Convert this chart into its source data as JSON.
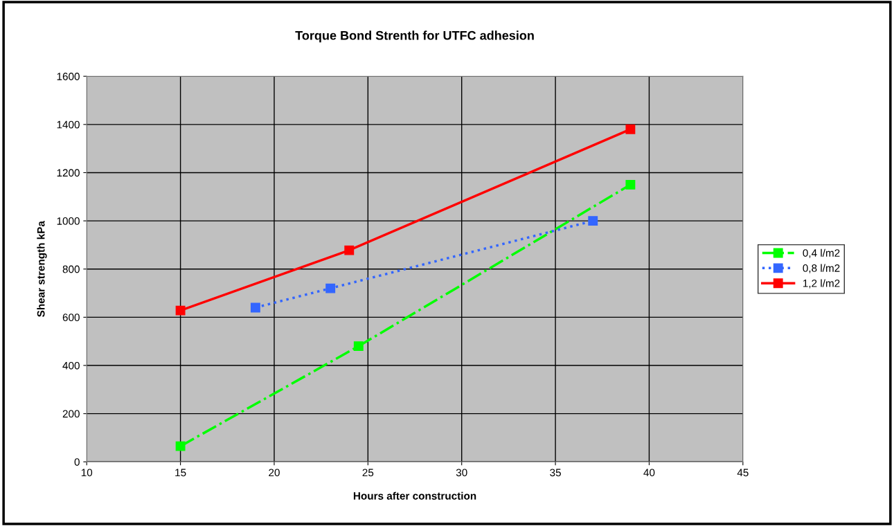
{
  "chart_data": {
    "type": "line",
    "title": "Torque Bond Strenth for UTFC adhesion",
    "xlabel": "Hours after construction",
    "ylabel": "Shear strength kPa",
    "series": [
      {
        "name": "0,4 l/m2",
        "color": "#00ff00",
        "x": [
          15,
          24.5,
          39
        ],
        "values": [
          65,
          480,
          1150
        ],
        "line_style": "dashdot"
      },
      {
        "name": "0,8 l/m2",
        "color": "#3366ff",
        "x": [
          19,
          23,
          37
        ],
        "values": [
          640,
          720,
          1000
        ],
        "line_style": "dotted"
      },
      {
        "name": "1,2 l/m2",
        "color": "#ff0000",
        "x": [
          15,
          24,
          39
        ],
        "values": [
          628,
          878,
          1380
        ],
        "line_style": "solid"
      }
    ],
    "xlim": [
      10,
      45
    ],
    "xticks": [
      10,
      15,
      20,
      25,
      30,
      35,
      40,
      45
    ],
    "ylim": [
      0,
      1600
    ],
    "yticks": [
      0,
      200,
      400,
      600,
      800,
      1000,
      1200,
      1400,
      1600
    ],
    "grid": true,
    "legend": "right",
    "marker": "square"
  }
}
